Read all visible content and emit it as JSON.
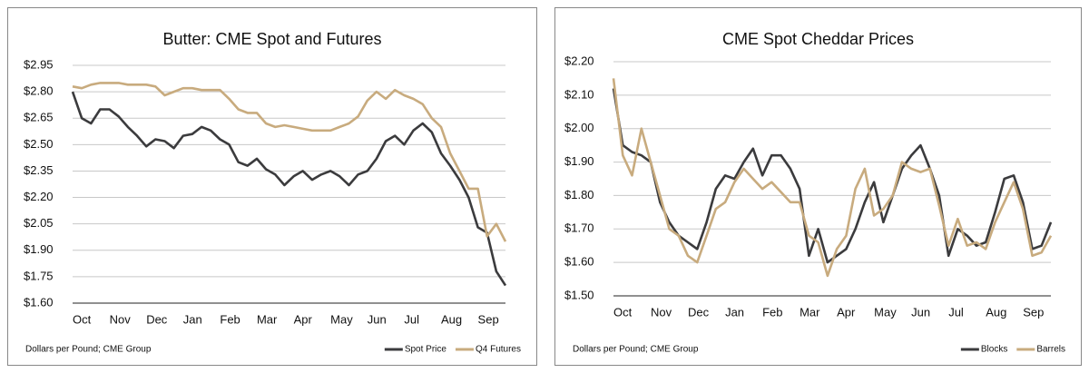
{
  "chart_data": [
    {
      "type": "line",
      "title": "Butter: CME Spot and Futures",
      "note": "Dollars per Pound; CME Group",
      "categories": [
        "Oct",
        null,
        null,
        null,
        "Nov",
        null,
        null,
        null,
        "Dec",
        null,
        null,
        null,
        "Jan",
        null,
        null,
        null,
        "Feb",
        null,
        null,
        null,
        "Mar",
        null,
        null,
        null,
        "Apr",
        null,
        null,
        null,
        "May",
        null,
        null,
        null,
        "Jun",
        null,
        null,
        null,
        "Jul",
        null,
        null,
        null,
        "Aug",
        null,
        null,
        null,
        "Sep",
        null,
        null,
        null
      ],
      "series": [
        {
          "name": "Spot Price",
          "color": "#3b3b3d",
          "values": [
            2.8,
            2.65,
            2.62,
            2.7,
            2.7,
            2.66,
            2.6,
            2.55,
            2.49,
            2.53,
            2.52,
            2.48,
            2.55,
            2.56,
            2.6,
            2.58,
            2.53,
            2.5,
            2.4,
            2.38,
            2.42,
            2.36,
            2.33,
            2.27,
            2.32,
            2.35,
            2.3,
            2.33,
            2.35,
            2.32,
            2.27,
            2.33,
            2.35,
            2.42,
            2.52,
            2.55,
            2.5,
            2.58,
            2.62,
            2.57,
            2.45,
            2.38,
            2.3,
            2.2,
            2.03,
            2.0,
            1.78,
            1.7
          ]
        },
        {
          "name": "Q4 Futures",
          "color": "#c8ab7e",
          "values": [
            2.83,
            2.82,
            2.84,
            2.85,
            2.85,
            2.85,
            2.84,
            2.84,
            2.84,
            2.83,
            2.78,
            2.8,
            2.82,
            2.82,
            2.81,
            2.81,
            2.81,
            2.76,
            2.7,
            2.68,
            2.68,
            2.62,
            2.6,
            2.61,
            2.6,
            2.59,
            2.58,
            2.58,
            2.58,
            2.6,
            2.62,
            2.66,
            2.75,
            2.8,
            2.76,
            2.81,
            2.78,
            2.76,
            2.73,
            2.65,
            2.6,
            2.45,
            2.35,
            2.25,
            2.25,
            1.98,
            2.05,
            1.95
          ]
        }
      ],
      "ylim": [
        1.6,
        2.95
      ],
      "yticks": [
        {
          "value": 1.6,
          "label": "$1.60"
        },
        {
          "value": 1.75,
          "label": "$1.75"
        },
        {
          "value": 1.9,
          "label": "$1.90"
        },
        {
          "value": 2.05,
          "label": "$2.05"
        },
        {
          "value": 2.2,
          "label": "$2.20"
        },
        {
          "value": 2.35,
          "label": "$2.35"
        },
        {
          "value": 2.5,
          "label": "$2.50"
        },
        {
          "value": 2.65,
          "label": "$2.65"
        },
        {
          "value": 2.8,
          "label": "$2.80"
        },
        {
          "value": 2.95,
          "label": "$2.95"
        }
      ],
      "grid": true,
      "legend": "bottom-right"
    },
    {
      "type": "line",
      "title": "CME Spot Cheddar Prices",
      "note": "Dollars per Pound; CME Group",
      "categories": [
        "Oct",
        null,
        null,
        null,
        "Nov",
        null,
        null,
        null,
        "Dec",
        null,
        null,
        null,
        "Jan",
        null,
        null,
        null,
        "Feb",
        null,
        null,
        null,
        "Mar",
        null,
        null,
        null,
        "Apr",
        null,
        null,
        null,
        "May",
        null,
        null,
        null,
        "Jun",
        null,
        null,
        null,
        "Jul",
        null,
        null,
        null,
        "Aug",
        null,
        null,
        null,
        "Sep",
        null,
        null,
        null
      ],
      "series": [
        {
          "name": "Blocks",
          "color": "#3b3b3d",
          "values": [
            2.12,
            1.95,
            1.93,
            1.92,
            1.9,
            1.78,
            1.72,
            1.68,
            1.66,
            1.64,
            1.72,
            1.82,
            1.86,
            1.85,
            1.9,
            1.94,
            1.86,
            1.92,
            1.92,
            1.88,
            1.82,
            1.62,
            1.7,
            1.6,
            1.62,
            1.64,
            1.7,
            1.78,
            1.84,
            1.72,
            1.8,
            1.88,
            1.92,
            1.95,
            1.88,
            1.8,
            1.62,
            1.7,
            1.68,
            1.65,
            1.66,
            1.75,
            1.85,
            1.86,
            1.78,
            1.64,
            1.65,
            1.72
          ]
        },
        {
          "name": "Barrels",
          "color": "#c8ab7e",
          "values": [
            2.15,
            1.92,
            1.86,
            2.0,
            1.9,
            1.8,
            1.7,
            1.68,
            1.62,
            1.6,
            1.68,
            1.76,
            1.78,
            1.84,
            1.88,
            1.85,
            1.82,
            1.84,
            1.81,
            1.78,
            1.78,
            1.68,
            1.66,
            1.56,
            1.64,
            1.68,
            1.82,
            1.88,
            1.74,
            1.76,
            1.8,
            1.9,
            1.88,
            1.87,
            1.88,
            1.77,
            1.65,
            1.73,
            1.65,
            1.66,
            1.64,
            1.72,
            1.78,
            1.84,
            1.76,
            1.62,
            1.63,
            1.68
          ]
        }
      ],
      "ylim": [
        1.5,
        2.2
      ],
      "yticks": [
        {
          "value": 1.5,
          "label": "$1.50"
        },
        {
          "value": 1.6,
          "label": "$1.60"
        },
        {
          "value": 1.7,
          "label": "$1.70"
        },
        {
          "value": 1.8,
          "label": "$1.80"
        },
        {
          "value": 1.9,
          "label": "$1.90"
        },
        {
          "value": 2.0,
          "label": "$2.00"
        },
        {
          "value": 2.1,
          "label": "$2.10"
        },
        {
          "value": 2.2,
          "label": "$2.20"
        }
      ],
      "grid": true,
      "legend": "bottom-right"
    }
  ]
}
